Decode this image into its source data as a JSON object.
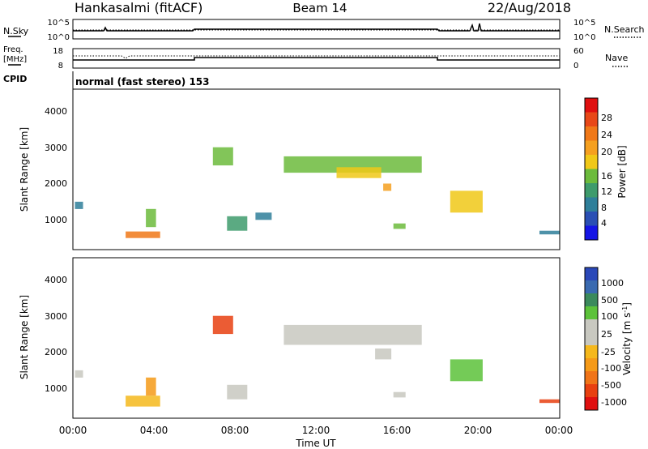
{
  "header": {
    "station": "Hankasalmi (fitACF)",
    "beam": "Beam 14",
    "date": "22/Aug/2018"
  },
  "noise_panel": {
    "left_label": "N.Sky",
    "left_ticks": [
      "10^5",
      "10^0"
    ],
    "right_ticks": [
      "10^5",
      "10^0"
    ],
    "right_label": "N.Search"
  },
  "freq_panel": {
    "left_label_1": "Freq.",
    "left_label_2": "[MHz]",
    "left_ticks": [
      "18",
      "8"
    ],
    "right_ticks": [
      "60",
      "0"
    ],
    "right_label": "Nave"
  },
  "cpid": {
    "label": "CPID",
    "mode": "normal (fast stereo) 153"
  },
  "range_axis": {
    "label": "Slant Range [km]",
    "ticks": [
      "1000",
      "2000",
      "3000",
      "4000"
    ]
  },
  "time_axis": {
    "label": "Time UT",
    "ticks": [
      "00:00",
      "04:00",
      "08:00",
      "12:00",
      "16:00",
      "20:00",
      "00:00"
    ]
  },
  "power_scale": {
    "label": "Power [dB]",
    "ticks": [
      "4",
      "8",
      "12",
      "16",
      "20",
      "24",
      "28"
    ],
    "colors": [
      "#1515e6",
      "#2a4fb4",
      "#2f7f9a",
      "#3e9b6c",
      "#6cbb3c",
      "#f0c818",
      "#f5a020",
      "#f07818",
      "#e84818",
      "#e01010"
    ]
  },
  "velocity_scale": {
    "label": "Velocity",
    "unit": "[m s",
    "unit_sup": "-1",
    "unit_close": "]",
    "ticks": [
      "1000",
      "500",
      "100",
      "25",
      "-25",
      "-100",
      "-500",
      "-1000"
    ],
    "colors": [
      "#2a48b8",
      "#3a6ab0",
      "#3b8a5c",
      "#5cc23a",
      "#c8c8c0",
      "#c8c8c0",
      "#f5b81c",
      "#f59a18",
      "#f07418",
      "#e84010",
      "#e01010"
    ]
  },
  "chart_data": [
    {
      "type": "heatmap",
      "title": "Power",
      "x_range_hours": [
        0,
        24
      ],
      "ylim": [
        180,
        4600
      ],
      "ylabel": "Slant Range [km]",
      "xlabel": "",
      "colorbar": "Power [dB]",
      "color_range": [
        0,
        30
      ],
      "regions": [
        {
          "t": [
            0.1,
            0.5
          ],
          "r": [
            1300,
            1500
          ],
          "value": 8
        },
        {
          "t": [
            2.6,
            4.3
          ],
          "r": [
            500,
            680
          ],
          "value": 22
        },
        {
          "t": [
            3.6,
            4.1
          ],
          "r": [
            800,
            1300
          ],
          "value": 14
        },
        {
          "t": [
            6.9,
            7.9
          ],
          "r": [
            2500,
            3000
          ],
          "value": 14
        },
        {
          "t": [
            7.6,
            8.6
          ],
          "r": [
            700,
            1100
          ],
          "value": 10
        },
        {
          "t": [
            9.0,
            9.8
          ],
          "r": [
            1000,
            1200
          ],
          "value": 6
        },
        {
          "t": [
            10.4,
            17.2
          ],
          "r": [
            2300,
            2750
          ],
          "value": 13
        },
        {
          "t": [
            13.0,
            15.2
          ],
          "r": [
            2150,
            2450
          ],
          "value": 17
        },
        {
          "t": [
            15.3,
            15.7
          ],
          "r": [
            1800,
            2000
          ],
          "value": 20
        },
        {
          "t": [
            15.8,
            16.4
          ],
          "r": [
            750,
            900
          ],
          "value": 12
        },
        {
          "t": [
            18.6,
            20.2
          ],
          "r": [
            1200,
            1800
          ],
          "value": 15
        },
        {
          "t": [
            23.0,
            24.0
          ],
          "r": [
            600,
            700
          ],
          "value": 8
        }
      ]
    },
    {
      "type": "heatmap",
      "title": "Velocity",
      "x_range_hours": [
        0,
        24
      ],
      "ylim": [
        180,
        4600
      ],
      "ylabel": "Slant Range [km]",
      "xlabel": "Time UT",
      "colorbar": "Velocity [m s-1]",
      "color_range": [
        -1000,
        1000
      ],
      "regions": [
        {
          "t": [
            0.1,
            0.5
          ],
          "r": [
            1300,
            1500
          ],
          "value": 0
        },
        {
          "t": [
            2.6,
            4.3
          ],
          "r": [
            500,
            800
          ],
          "value": -150
        },
        {
          "t": [
            3.6,
            4.1
          ],
          "r": [
            800,
            1300
          ],
          "value": -300
        },
        {
          "t": [
            6.9,
            7.9
          ],
          "r": [
            2500,
            3000
          ],
          "value": -700
        },
        {
          "t": [
            7.6,
            8.6
          ],
          "r": [
            700,
            1100
          ],
          "value": 0
        },
        {
          "t": [
            10.4,
            17.2
          ],
          "r": [
            2200,
            2750
          ],
          "value": 0
        },
        {
          "t": [
            14.9,
            15.7
          ],
          "r": [
            1800,
            2100
          ],
          "value": 100
        },
        {
          "t": [
            15.8,
            16.4
          ],
          "r": [
            750,
            900
          ],
          "value": 100
        },
        {
          "t": [
            18.6,
            20.2
          ],
          "r": [
            1200,
            1800
          ],
          "value": 300
        },
        {
          "t": [
            23.0,
            24.0
          ],
          "r": [
            600,
            700
          ],
          "value": -700
        }
      ]
    }
  ]
}
